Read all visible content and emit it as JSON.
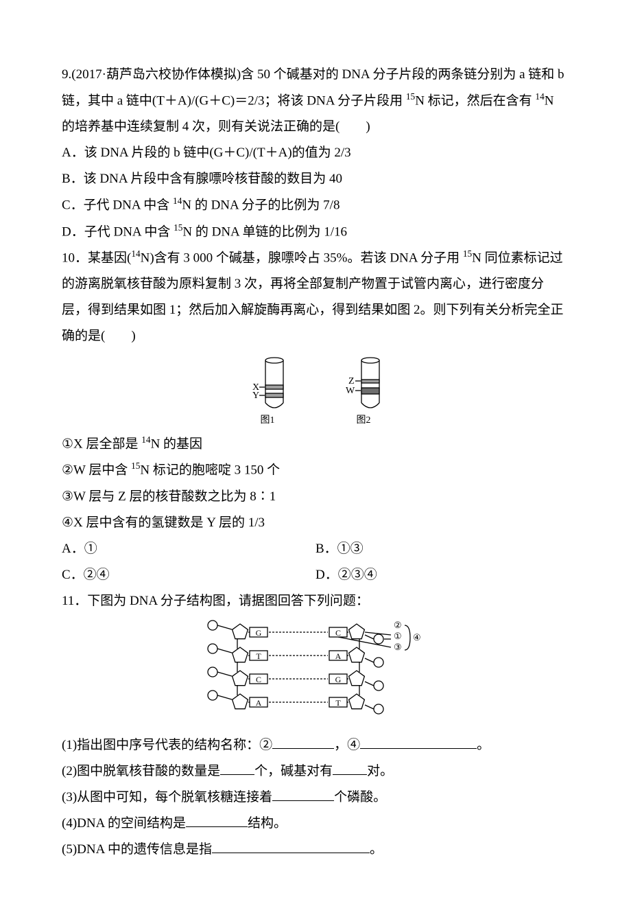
{
  "q9": {
    "stem": "9.(2017·葫芦岛六校协作体模拟)含 50 个碱基对的 DNA 分子片段的两条链分别为 a 链和 b 链，其中 a 链中(T＋A)/(G＋C)＝2/3；将该 DNA 分子片段用 ",
    "sup1": "15",
    "stem2": "N 标记，然后在含有 ",
    "sup2": "14",
    "stem3": "N 的培养基中连续复制 4 次，则有关说法正确的是(　　)",
    "optA": "A．该 DNA 片段的 b 链中(G＋C)/(T＋A)的值为 2/3",
    "optB": "B．该 DNA 片段中含有腺嘌呤核苷酸的数目为 40",
    "optC_pre": "C．子代 DNA 中含 ",
    "optC_sup": "14",
    "optC_post": "N 的 DNA 分子的比例为 7/8",
    "optD_pre": "D．子代 DNA 中含 ",
    "optD_sup": "15",
    "optD_post": "N 的 DNA 单链的比例为 1/16"
  },
  "q10": {
    "stem_pre": "10．某基因(",
    "sup1": "14",
    "stem_mid1": "N)含有 3 000 个碱基，腺嘌呤占 35%。若该 DNA 分子用 ",
    "sup2": "15",
    "stem_mid2": "N 同位素标记过的游离脱氧核苷酸为原料复制 3 次，再将全部复制产物置于试管内离心，进行密度分层，得到结果如图 1；然后加入解旋酶再离心，得到结果如图 2。则下列有关分析完全正确的是(　　)",
    "tube1": {
      "labels": {
        "upper": "X",
        "lower": "Y"
      },
      "caption": "图1"
    },
    "tube2": {
      "labels": {
        "upper": "Z",
        "lower": "W"
      },
      "caption": "图2"
    },
    "stmt1_pre": "①X 层全部是 ",
    "stmt1_sup": "14",
    "stmt1_post": "N 的基因",
    "stmt2_pre": "②W 层中含 ",
    "stmt2_sup": "15",
    "stmt2_post": "N 标记的胞嘧啶 3 150 个",
    "stmt3": "③W 层与 Z 层的核苷酸数之比为 8∶1",
    "stmt4": "④X 层中含有的氢键数是 Y 层的  1/3",
    "optA": "A．①",
    "optB": "B．①③",
    "optC": "C．②④",
    "optD": "D．②③④",
    "tube_colors": {
      "outline": "#000000",
      "fill": "#ffffff",
      "band": "#a0a0a0",
      "band_dark": "#6e6e6e"
    }
  },
  "q11": {
    "stem": "11．下图为 DNA 分子结构图，请据图回答下列问题：",
    "pairs": [
      {
        "left": "G",
        "right": "C"
      },
      {
        "left": "T",
        "right": "A"
      },
      {
        "left": "C",
        "right": "G"
      },
      {
        "left": "A",
        "right": "T"
      }
    ],
    "annot": {
      "a2": "②",
      "a1": "①",
      "a3": "③",
      "a4": "④"
    },
    "colors": {
      "stroke": "#000000",
      "fill": "#ffffff",
      "text": "#000000"
    },
    "sub1_a": "(1)指出图中序号代表的结构名称：②",
    "sub1_b": "，④",
    "sub1_c": "。",
    "sub2_a": "(2)图中脱氧核苷酸的数量是",
    "sub2_b": "个，碱基对有",
    "sub2_c": "对。",
    "sub3_a": "(3)从图中可知，每个脱氧核糖连接着",
    "sub3_b": "个磷酸。",
    "sub4_a": "(4)DNA 的空间结构是",
    "sub4_b": "结构。",
    "sub5_a": "(5)DNA 中的遗传信息是指",
    "sub5_b": "。"
  }
}
